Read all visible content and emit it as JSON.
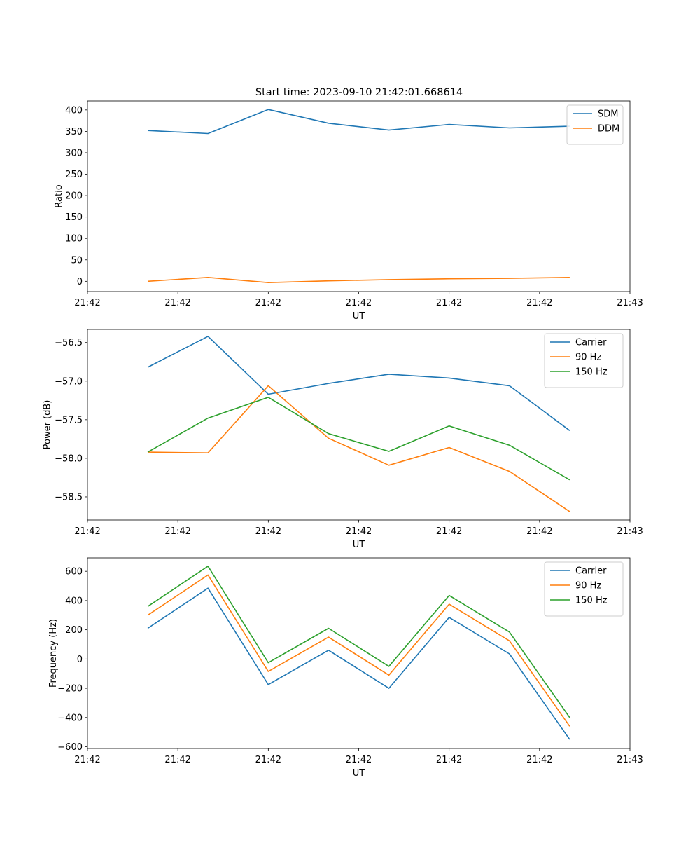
{
  "figure_title": "Start time: 2023-09-10 21:42:01.668614",
  "colors": {
    "blue": "#1f77b4",
    "orange": "#ff7f0e",
    "green": "#2ca02c"
  },
  "chart_data": [
    {
      "type": "line",
      "title": "Start time: 2023-09-10 21:42:01.668614",
      "xlabel": "UT",
      "ylabel": "Ratio",
      "x_index": [
        1,
        2,
        3,
        4,
        5,
        6,
        7,
        8
      ],
      "xlim": [
        0,
        9
      ],
      "x_ticks": [
        0,
        1.5,
        3,
        4.5,
        6,
        7.5,
        9
      ],
      "x_tick_labels": [
        "21:42",
        "21:42",
        "21:42",
        "21:42",
        "21:42",
        "21:42",
        "21:43"
      ],
      "ylim": [
        -24,
        421
      ],
      "y_ticks": [
        0,
        50,
        100,
        150,
        200,
        250,
        300,
        350,
        400
      ],
      "y_tick_labels": [
        "0",
        "50",
        "100",
        "150",
        "200",
        "250",
        "300",
        "350",
        "400"
      ],
      "legend": "top-right",
      "series": [
        {
          "name": "SDM",
          "color": "#1f77b4",
          "values": [
            352,
            345,
            401,
            369,
            353,
            366,
            358,
            362
          ]
        },
        {
          "name": "DDM",
          "color": "#ff7f0e",
          "values": [
            0,
            9,
            -3,
            1,
            4,
            6,
            7,
            9
          ]
        }
      ]
    },
    {
      "type": "line",
      "title": "",
      "xlabel": "UT",
      "ylabel": "Power (dB)",
      "x_index": [
        1,
        2,
        3,
        4,
        5,
        6,
        7,
        8
      ],
      "xlim": [
        0,
        9
      ],
      "x_ticks": [
        0,
        1.5,
        3,
        4.5,
        6,
        7.5,
        9
      ],
      "x_tick_labels": [
        "21:42",
        "21:42",
        "21:42",
        "21:42",
        "21:42",
        "21:42",
        "21:43"
      ],
      "ylim": [
        -58.8,
        -56.33
      ],
      "y_ticks": [
        -58.5,
        -58.0,
        -57.5,
        -57.0,
        -56.5
      ],
      "y_tick_labels": [
        "−58.5",
        "−58.0",
        "−57.5",
        "−57.0",
        "−56.5"
      ],
      "legend": "top-right",
      "series": [
        {
          "name": "Carrier",
          "color": "#1f77b4",
          "values": [
            -56.82,
            -56.42,
            -57.17,
            -57.03,
            -56.91,
            -56.96,
            -57.06,
            -57.64
          ]
        },
        {
          "name": "90 Hz",
          "color": "#ff7f0e",
          "values": [
            -57.92,
            -57.93,
            -57.06,
            -57.74,
            -58.09,
            -57.86,
            -58.17,
            -58.69
          ]
        },
        {
          "name": "150 Hz",
          "color": "#2ca02c",
          "values": [
            -57.92,
            -57.48,
            -57.21,
            -57.68,
            -57.91,
            -57.58,
            -57.83,
            -58.28
          ]
        }
      ]
    },
    {
      "type": "line",
      "title": "",
      "xlabel": "UT",
      "ylabel": "Frequency (Hz)",
      "x_index": [
        1,
        2,
        3,
        4,
        5,
        6,
        7,
        8
      ],
      "xlim": [
        0,
        9
      ],
      "x_ticks": [
        0,
        1.5,
        3,
        4.5,
        6,
        7.5,
        9
      ],
      "x_tick_labels": [
        "21:42",
        "21:42",
        "21:42",
        "21:42",
        "21:42",
        "21:42",
        "21:43"
      ],
      "ylim": [
        -612,
        692
      ],
      "y_ticks": [
        -600,
        -400,
        -200,
        0,
        200,
        400,
        600
      ],
      "y_tick_labels": [
        "−600",
        "−400",
        "−200",
        "0",
        "200",
        "400",
        "600"
      ],
      "legend": "top-right",
      "series": [
        {
          "name": "Carrier",
          "color": "#1f77b4",
          "values": [
            210,
            485,
            -175,
            60,
            -200,
            285,
            35,
            -550
          ]
        },
        {
          "name": "90 Hz",
          "color": "#ff7f0e",
          "values": [
            300,
            575,
            -85,
            150,
            -110,
            375,
            125,
            -460
          ]
        },
        {
          "name": "150 Hz",
          "color": "#2ca02c",
          "values": [
            360,
            635,
            -25,
            210,
            -50,
            435,
            185,
            -400
          ]
        }
      ]
    }
  ]
}
